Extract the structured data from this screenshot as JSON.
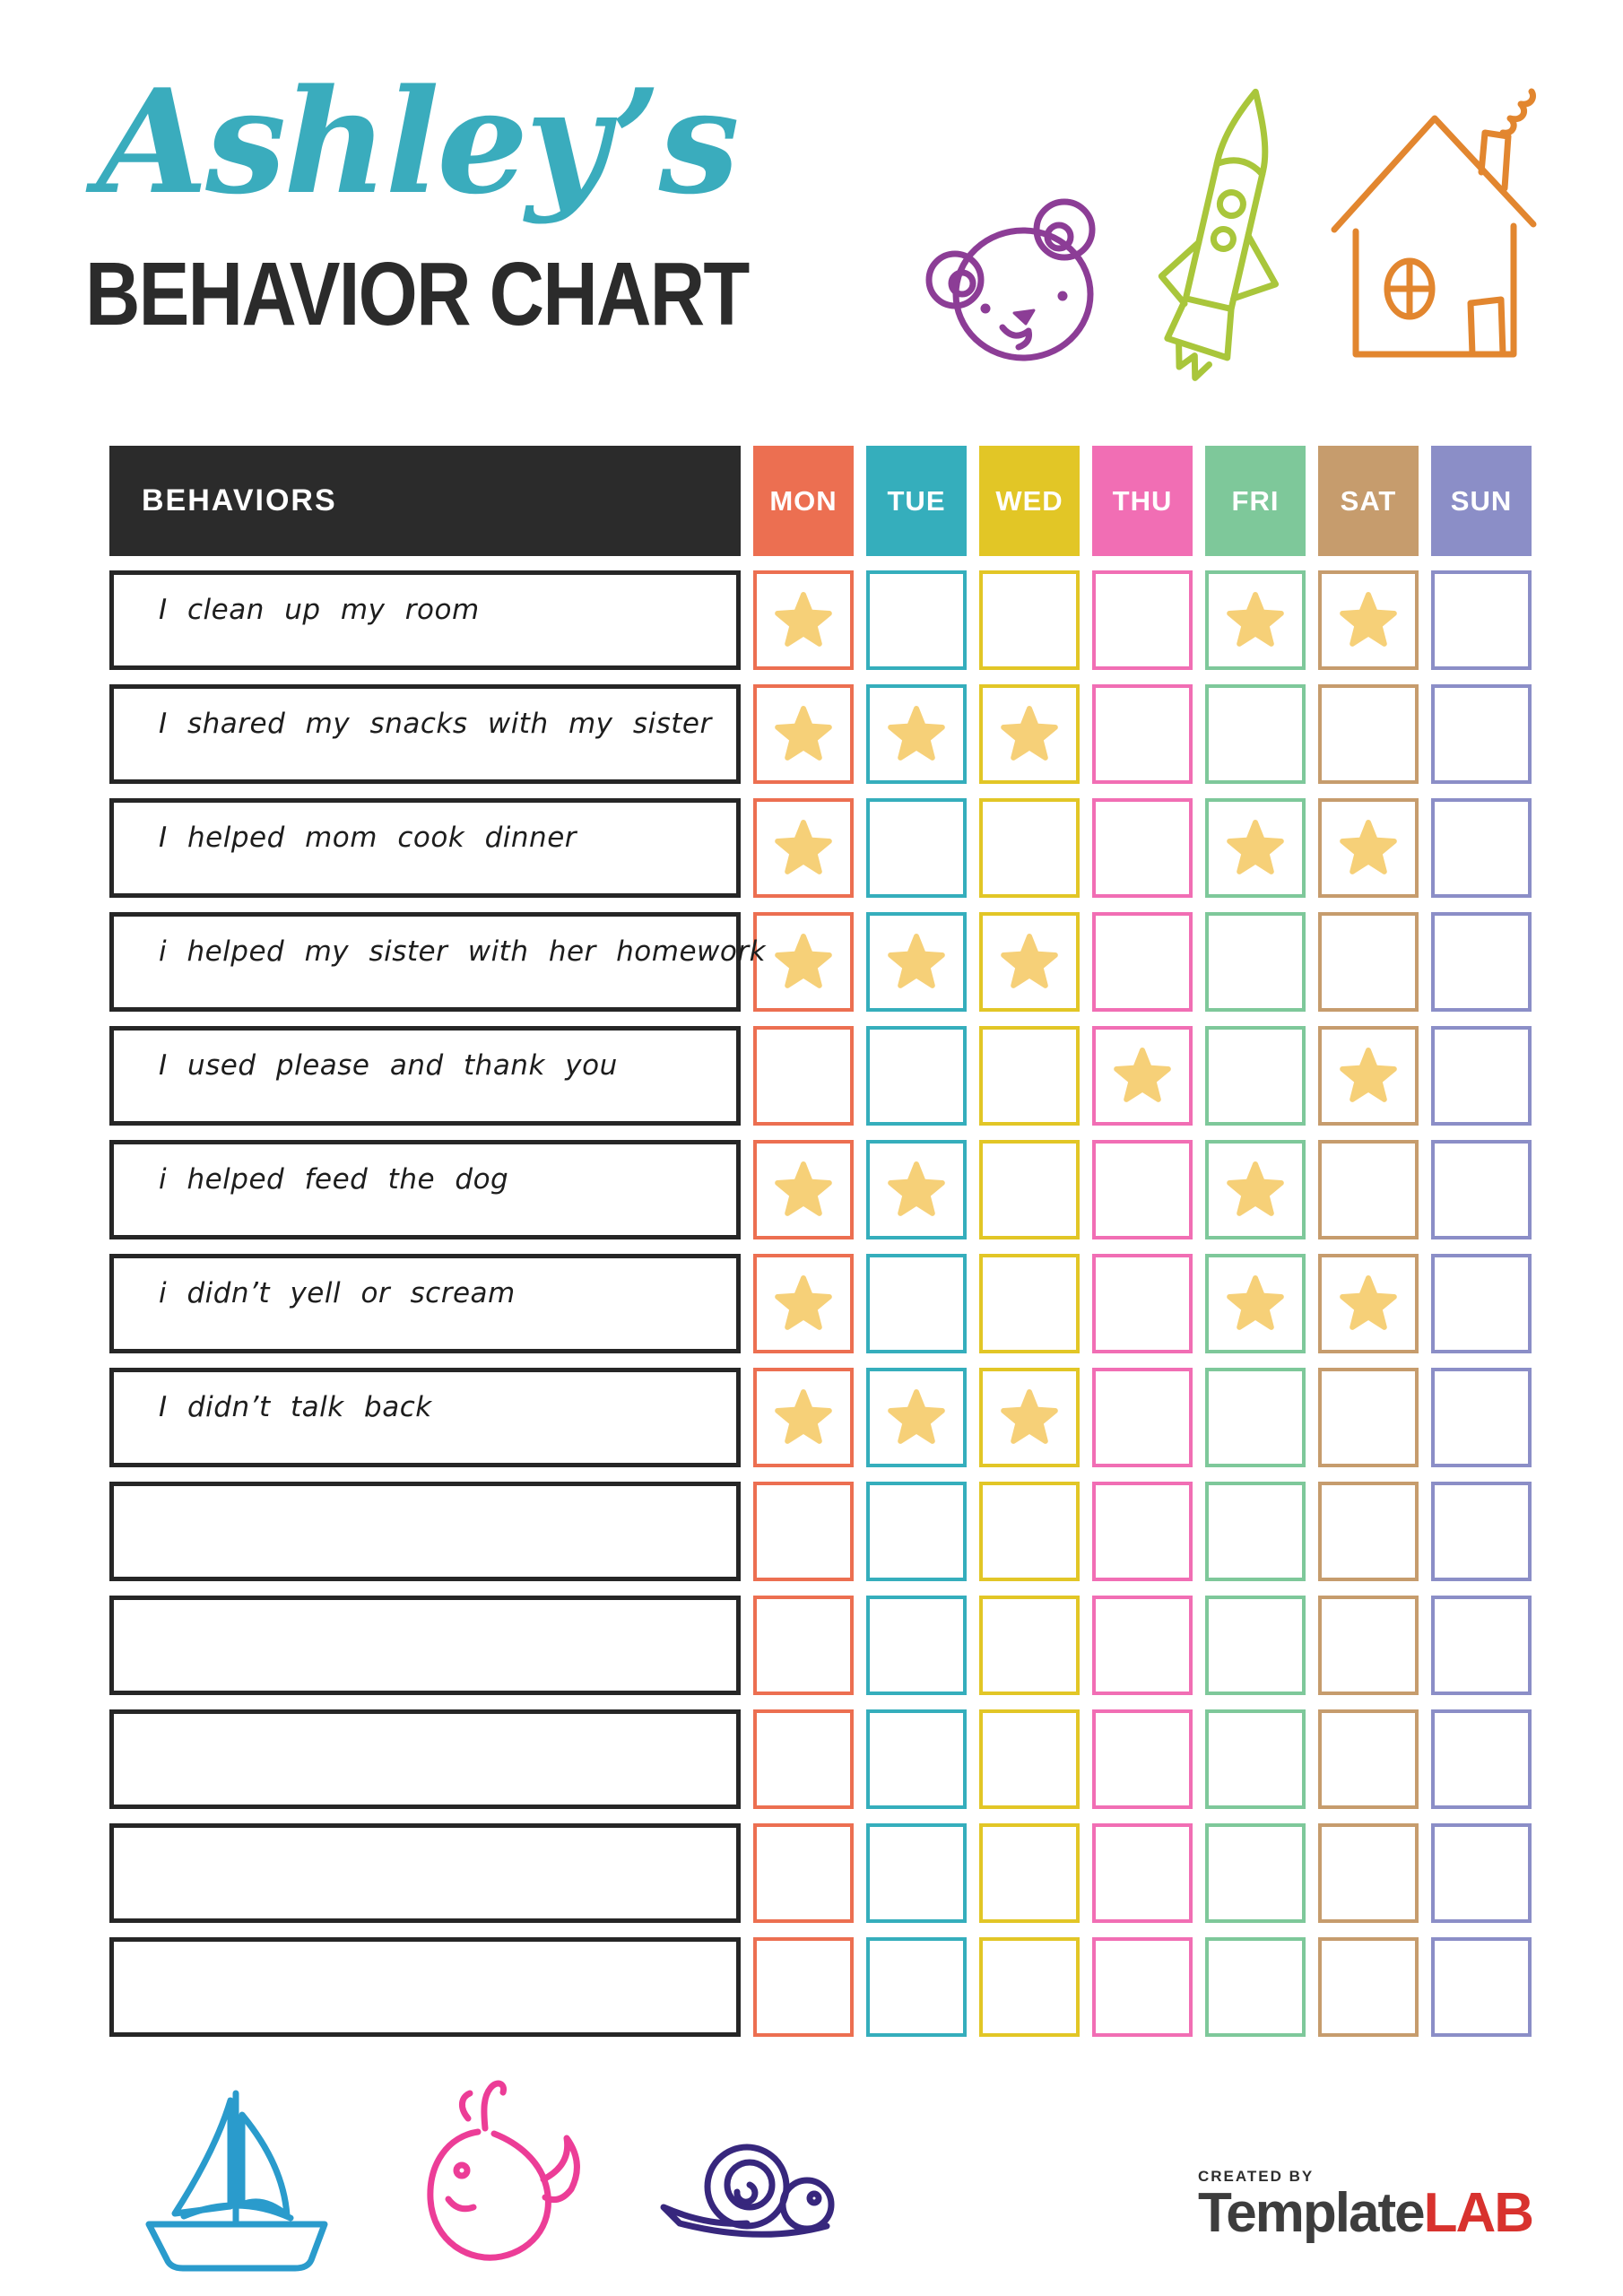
{
  "header": {
    "script_title": "Ashley’s",
    "main_title": "BEHAVIOR CHART"
  },
  "decorations": {
    "top_icons": [
      "bear-icon",
      "rocket-icon",
      "house-icon"
    ],
    "bottom_icons": [
      "sailboat-icon",
      "whale-icon",
      "snail-icon"
    ]
  },
  "colors": {
    "script_title": "#3aacbd",
    "main_title": "#2b2b2b",
    "header_black": "#2b2b2b",
    "behavior_box_border": "#262626",
    "star": "#f6d078",
    "bear": "#8c3d96",
    "rocket": "#a9c63b",
    "house": "#e2862f",
    "sailboat": "#2a9bcc",
    "whale": "#ec3d97",
    "snail": "#37277d",
    "logo_gray": "#3d3d3d",
    "logo_red": "#d8322e"
  },
  "table": {
    "behaviors_header": "BEHAVIORS",
    "days": [
      {
        "label": "MON",
        "color": "#ec6f51"
      },
      {
        "label": "TUE",
        "color": "#35aebc"
      },
      {
        "label": "WED",
        "color": "#e2c626"
      },
      {
        "label": "THU",
        "color": "#f16eb4"
      },
      {
        "label": "FRI",
        "color": "#7ec89a"
      },
      {
        "label": "SAT",
        "color": "#c69c6d"
      },
      {
        "label": "SUN",
        "color": "#8b8ec7"
      }
    ],
    "rows": [
      {
        "label": "I clean up my room",
        "stars": [
          "MON",
          "FRI",
          "SAT"
        ]
      },
      {
        "label": "I shared my snacks with my sister",
        "stars": [
          "MON",
          "TUE",
          "WED"
        ]
      },
      {
        "label": "I helped mom cook dinner",
        "stars": [
          "MON",
          "FRI",
          "SAT"
        ]
      },
      {
        "label": "i helped my sister with her homework",
        "stars": [
          "MON",
          "TUE",
          "WED"
        ]
      },
      {
        "label": "I used please and thank you",
        "stars": [
          "THU",
          "SAT"
        ]
      },
      {
        "label": "i helped feed the dog",
        "stars": [
          "MON",
          "TUE",
          "FRI"
        ]
      },
      {
        "label": "i didn’t yell or scream",
        "stars": [
          "MON",
          "FRI",
          "SAT"
        ]
      },
      {
        "label": "I didn’t talk back",
        "stars": [
          "MON",
          "TUE",
          "WED"
        ]
      },
      {
        "label": "",
        "stars": []
      },
      {
        "label": "",
        "stars": []
      },
      {
        "label": "",
        "stars": []
      },
      {
        "label": "",
        "stars": []
      },
      {
        "label": "",
        "stars": []
      }
    ]
  },
  "footer": {
    "created_by": "CREATED BY",
    "brand_primary": "Template",
    "brand_secondary": "LAB"
  }
}
